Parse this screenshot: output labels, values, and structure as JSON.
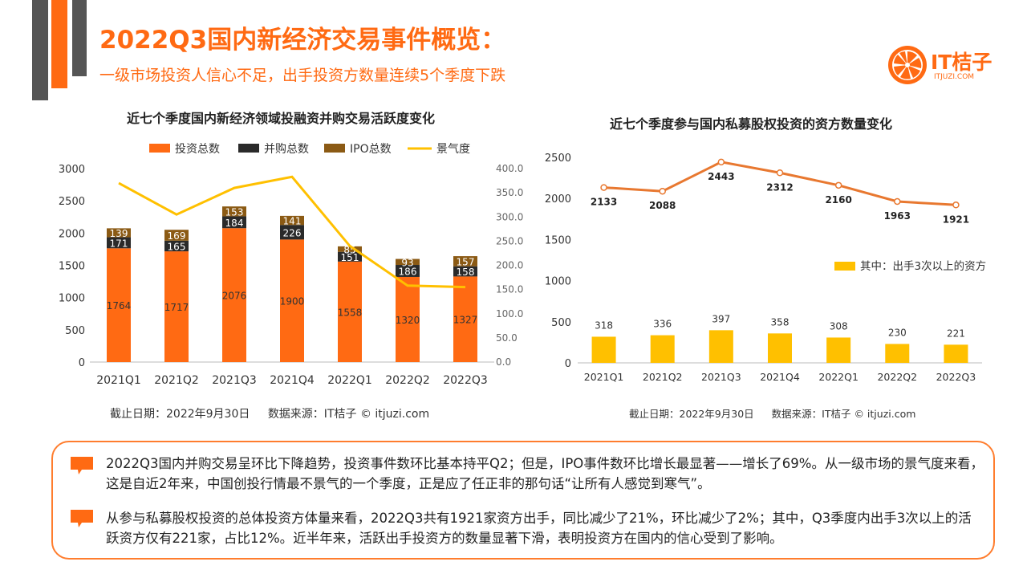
{
  "header": {
    "title": "2022Q3国内新经济交易事件概览：",
    "subtitle": "一级市场投资人信心不足，出手投资方数量连续5个季度下跌"
  },
  "logo": {
    "name": "IT桔子",
    "domain": "ITJUZI.COM"
  },
  "colors": {
    "orange": "#ff6a13",
    "dark": "#2a2a2a",
    "brown": "#8b5a14",
    "yellow": "#ffc000",
    "line_orange": "#e87830"
  },
  "chart_data": [
    {
      "type": "bar",
      "stacked": true,
      "title": "近七个季度国内新经济领域投融资并购交易活跃度变化",
      "categories": [
        "2021Q1",
        "2021Q2",
        "2021Q3",
        "2021Q4",
        "2022Q1",
        "2022Q2",
        "2022Q3"
      ],
      "legend": [
        "投资总数",
        "并购总数",
        "IPO总数",
        "景气度"
      ],
      "legend_position": "top",
      "series": [
        {
          "name": "投资总数",
          "color": "#ff6a13",
          "values": [
            1764,
            1717,
            2076,
            1900,
            1558,
            1320,
            1327
          ]
        },
        {
          "name": "并购总数",
          "color": "#2a2a2a",
          "values": [
            171,
            165,
            184,
            226,
            151,
            186,
            158
          ]
        },
        {
          "name": "IPO总数",
          "color": "#8b5a14",
          "values": [
            139,
            169,
            153,
            141,
            85,
            93,
            157
          ]
        }
      ],
      "line_series": {
        "name": "景气度",
        "color": "#ffc000",
        "axis": "right",
        "values": [
          370,
          305,
          360,
          383,
          240,
          158,
          155
        ]
      },
      "y_ticks": [
        "3000",
        "2500",
        "2000",
        "1500",
        "1000",
        "500",
        "0"
      ],
      "ylim": [
        0,
        3000
      ],
      "y2_ticks": [
        "400.0",
        "350.0",
        "300.0",
        "250.0",
        "200.0",
        "150.0",
        "100.0",
        "50.0",
        "0.0"
      ],
      "y2lim": [
        0,
        400
      ],
      "grid": false,
      "footnote_date": "截止日期：2022年9月30日",
      "footnote_source": "数据来源：IT桔子 © itjuzi.com"
    },
    {
      "type": "bar",
      "title": "近七个季度参与国内私募股权投资的资方数量变化",
      "categories": [
        "2021Q1",
        "2021Q2",
        "2021Q3",
        "2021Q4",
        "2022Q1",
        "2022Q2",
        "2022Q3"
      ],
      "line_series": {
        "color": "#e87830",
        "values": [
          2133,
          2088,
          2443,
          2312,
          2160,
          1963,
          1921
        ]
      },
      "series": [
        {
          "name": "其中：出手3次以上的资方",
          "color": "#ffc000",
          "values": [
            318,
            336,
            397,
            358,
            308,
            230,
            221
          ]
        }
      ],
      "legend_position": "right",
      "y_ticks": [
        "2500",
        "2000",
        "1500",
        "1000",
        "500",
        "0"
      ],
      "ylim": [
        0,
        2500
      ],
      "grid": false,
      "footnote_date": "截止日期：2022年9月30日",
      "footnote_source": "数据来源：IT桔子 © itjuzi.com"
    }
  ],
  "summary": {
    "point1": "2022Q3国内并购交易呈环比下降趋势，投资事件数环比基本持平Q2；但是，IPO事件数环比增长最显著——增长了69%。从一级市场的景气度来看，这是自近2年来，中国创投行情最不景气的一个季度，正是应了任正非的那句话“让所有人感觉到寒气”。",
    "point2": "从参与私募股权投资的总体投资方体量来看，2022Q3共有1921家资方出手，同比减少了21%，环比减少了2%；其中，Q3季度内出手3次以上的活跃资方仅有221家，占比12%。近半年来，活跃出手投资方的数量显著下滑，表明投资方在国内的信心受到了影响。"
  }
}
